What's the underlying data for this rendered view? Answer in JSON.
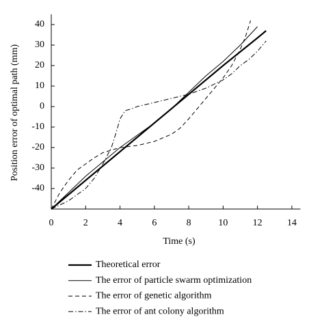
{
  "chart_data": {
    "type": "line",
    "ylabel": "Position error of optimal path (mm)",
    "xlabel": "Time (s)",
    "xlim": [
      0,
      14.5
    ],
    "xticks": [
      0,
      2,
      4,
      6,
      8,
      10,
      12,
      14
    ],
    "ylim": [
      -50,
      45
    ],
    "yticks": [
      -40,
      -30,
      -20,
      -10,
      0,
      10,
      20,
      30,
      40
    ],
    "series": [
      {
        "name": "Theoretical error",
        "color": "#000000",
        "linestyle": "solid",
        "linewidth": 2.2,
        "x": [
          0,
          2,
          4,
          6,
          8,
          10,
          12,
          12.5
        ],
        "values": [
          -50,
          -36,
          -22,
          -8,
          6,
          20,
          33.5,
          37
        ]
      },
      {
        "name": "The error of particle swarm optimization",
        "color": "#000000",
        "linestyle": "solid",
        "linewidth": 1,
        "x": [
          0,
          1,
          2,
          3,
          4,
          5,
          6,
          7,
          8,
          9,
          10,
          11,
          12
        ],
        "values": [
          -50,
          -42,
          -34,
          -27,
          -20,
          -14,
          -8,
          -1,
          7,
          15,
          22,
          30,
          39
        ]
      },
      {
        "name": "The error of genetic algorithm",
        "color": "#000000",
        "linestyle": "dashed",
        "linewidth": 1,
        "x": [
          0,
          0.5,
          1,
          1.5,
          2,
          2.5,
          3,
          4,
          5,
          6,
          7,
          7.5,
          8,
          8.5,
          9,
          9.5,
          10,
          10.5,
          11,
          11.3,
          11.6
        ],
        "values": [
          -50,
          -42,
          -36,
          -31,
          -28,
          -25,
          -22.5,
          -20,
          -19,
          -17,
          -13.5,
          -10.5,
          -6,
          -1,
          4,
          9,
          14,
          20,
          28,
          34,
          42
        ]
      },
      {
        "name": "The error of ant colony algorithm",
        "color": "#000000",
        "linestyle": "dashdot",
        "linewidth": 1,
        "x": [
          0,
          1,
          2,
          2.5,
          3,
          3.5,
          3.8,
          4,
          4.3,
          4.7,
          5,
          6,
          7,
          8,
          9,
          10,
          10.5,
          11,
          11.5,
          12,
          12.5
        ],
        "values": [
          -50,
          -46,
          -40,
          -35,
          -28,
          -20,
          -12,
          -6,
          -2,
          -1,
          0,
          2,
          4,
          6,
          9,
          13,
          16,
          20,
          23,
          27,
          32
        ]
      }
    ]
  }
}
